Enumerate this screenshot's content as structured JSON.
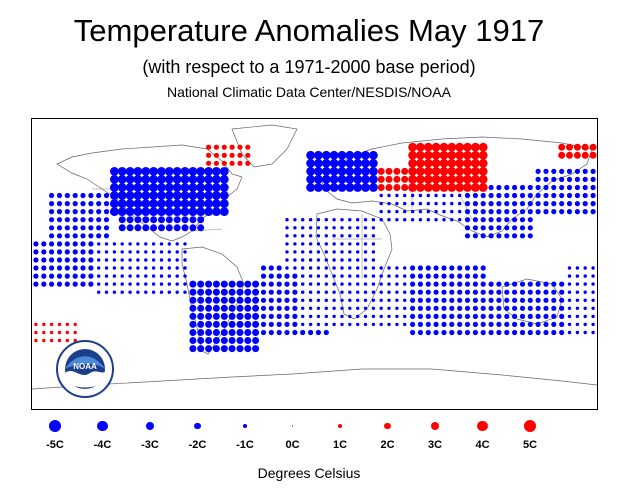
{
  "header": {
    "title": "Temperature Anomalies May 1917",
    "subtitle": "(with respect to a 1971-2000 base period)",
    "source": "National Climatic Data Center/NESDIS/NOAA"
  },
  "logo": {
    "label": "NOAA",
    "ring_text": "NATIONAL OCEANIC AND ATMOSPHERIC ADMINISTRATION · U.S. DEPARTMENT OF COMMERCE"
  },
  "colors": {
    "cold": "#0000ff",
    "warm": "#ff0000",
    "neutral": "#00a0a0",
    "coast": "#666666"
  },
  "legend": {
    "items": [
      {
        "label": "-5C",
        "value": -5
      },
      {
        "label": "-4C",
        "value": -4
      },
      {
        "label": "-3C",
        "value": -3
      },
      {
        "label": "-2C",
        "value": -2
      },
      {
        "label": "-1C",
        "value": -1
      },
      {
        "label": "0C",
        "value": 0
      },
      {
        "label": "1C",
        "value": 1
      },
      {
        "label": "2C",
        "value": 2
      },
      {
        "label": "3C",
        "value": 3
      },
      {
        "label": "4C",
        "value": 4
      },
      {
        "label": "5C",
        "value": 5
      }
    ],
    "units": "Degrees Celsius"
  },
  "map": {
    "projection": "equirectangular",
    "lon_range": [
      -180,
      180
    ],
    "lat_range": [
      -90,
      90
    ],
    "grid_spacing_deg": 5,
    "anomaly_blocks": [
      {
        "lon": [
          -130,
          -55
        ],
        "lat": [
          30,
          60
        ],
        "value": -4,
        "note": "North America"
      },
      {
        "lon": [
          -125,
          -70
        ],
        "lat": [
          20,
          30
        ],
        "value": -3
      },
      {
        "lon": [
          -170,
          -130
        ],
        "lat": [
          15,
          45
        ],
        "value": -2
      },
      {
        "lon": [
          -180,
          -140
        ],
        "lat": [
          -15,
          15
        ],
        "value": -2
      },
      {
        "lon": [
          -140,
          -80
        ],
        "lat": [
          -20,
          15
        ],
        "value": -1
      },
      {
        "lon": [
          -80,
          -35
        ],
        "lat": [
          -55,
          -10
        ],
        "value": -3,
        "note": "South America"
      },
      {
        "lon": [
          -35,
          10
        ],
        "lat": [
          -45,
          0
        ],
        "value": -2
      },
      {
        "lon": [
          -10,
          60
        ],
        "lat": [
          -40,
          0
        ],
        "value": -1
      },
      {
        "lon": [
          60,
          110
        ],
        "lat": [
          -45,
          0
        ],
        "value": -2
      },
      {
        "lon": [
          110,
          160
        ],
        "lat": [
          -45,
          -10
        ],
        "value": -2
      },
      {
        "lon": [
          160,
          180
        ],
        "lat": [
          -45,
          0
        ],
        "value": -1
      },
      {
        "lon": [
          -5,
          40
        ],
        "lat": [
          45,
          72
        ],
        "value": -4,
        "note": "Europe"
      },
      {
        "lon": [
          40,
          95
        ],
        "lat": [
          25,
          45
        ],
        "value": -1
      },
      {
        "lon": [
          95,
          140
        ],
        "lat": [
          15,
          50
        ],
        "value": -2
      },
      {
        "lon": [
          140,
          180
        ],
        "lat": [
          30,
          60
        ],
        "value": -2
      },
      {
        "lon": [
          -20,
          40
        ],
        "lat": [
          -5,
          30
        ],
        "value": -1
      },
      {
        "lon": [
          -180,
          -150
        ],
        "lat": [
          -50,
          -35
        ],
        "value": 1
      },
      {
        "lon": [
          60,
          110
        ],
        "lat": [
          45,
          75
        ],
        "value": 4,
        "note": "Siberia"
      },
      {
        "lon": [
          40,
          60
        ],
        "lat": [
          45,
          60
        ],
        "value": 3
      },
      {
        "lon": [
          155,
          180
        ],
        "lat": [
          65,
          75
        ],
        "value": 3
      },
      {
        "lon": [
          -70,
          -40
        ],
        "lat": [
          60,
          75
        ],
        "value": 2
      }
    ]
  }
}
